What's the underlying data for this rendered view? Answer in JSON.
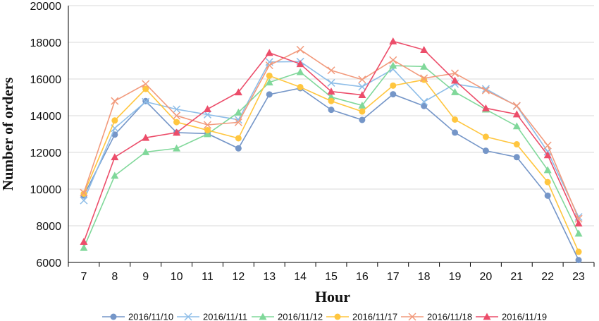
{
  "chart_data": {
    "type": "line",
    "title": "",
    "xlabel": "Hour",
    "ylabel": "Number of orders",
    "x": [
      7,
      8,
      9,
      10,
      11,
      12,
      13,
      14,
      15,
      16,
      17,
      18,
      19,
      20,
      21,
      22,
      23
    ],
    "xlim": [
      7,
      23
    ],
    "ylim": [
      6000,
      20000
    ],
    "yticks": [
      6000,
      8000,
      10000,
      12000,
      14000,
      16000,
      18000,
      20000
    ],
    "grid": "horizontal",
    "legend_position": "bottom",
    "series": [
      {
        "name": "2016/11/10",
        "color": "#7596c8",
        "marker": "circle",
        "values": [
          9650,
          12970,
          14800,
          13080,
          13020,
          12220,
          15160,
          15500,
          14320,
          13770,
          15170,
          14530,
          13080,
          12090,
          11740,
          9640,
          6130
        ]
      },
      {
        "name": "2016/11/11",
        "color": "#8dbde8",
        "marker": "x",
        "values": [
          9380,
          13320,
          14760,
          14350,
          14060,
          13780,
          16930,
          16950,
          15790,
          15580,
          16540,
          14760,
          15730,
          15460,
          14530,
          12040,
          8480
        ]
      },
      {
        "name": "2016/11/12",
        "color": "#80d89a",
        "marker": "triangle",
        "values": [
          6800,
          10730,
          12020,
          12220,
          13000,
          14180,
          15820,
          16380,
          15020,
          14560,
          16730,
          16680,
          15290,
          14340,
          13430,
          11040,
          7580
        ]
      },
      {
        "name": "2016/11/17",
        "color": "#ffc63f",
        "marker": "circle",
        "values": [
          9750,
          13740,
          15460,
          13650,
          13210,
          12770,
          16180,
          15560,
          14800,
          14230,
          15640,
          15960,
          13790,
          12850,
          12440,
          10380,
          6580
        ]
      },
      {
        "name": "2016/11/18",
        "color": "#f29a7c",
        "marker": "x",
        "values": [
          9800,
          14800,
          15730,
          14000,
          13500,
          13640,
          16750,
          17600,
          16470,
          15970,
          17030,
          16040,
          16310,
          15380,
          14540,
          12380,
          8380
        ]
      },
      {
        "name": "2016/11/19",
        "color": "#ec4d6a",
        "marker": "triangle",
        "values": [
          7130,
          11740,
          12800,
          13080,
          14360,
          15280,
          17430,
          16820,
          15320,
          15130,
          18060,
          17590,
          15920,
          14410,
          14080,
          11850,
          8130
        ]
      }
    ]
  }
}
